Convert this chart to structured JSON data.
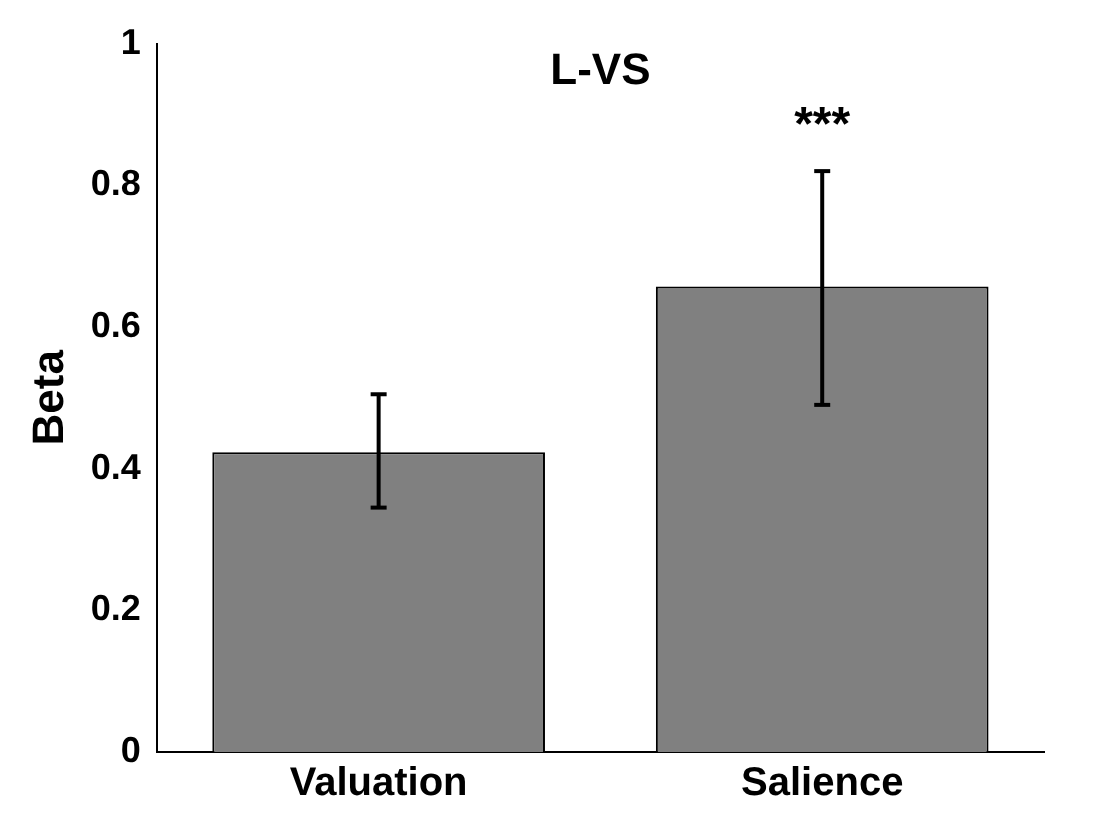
{
  "chart_data": {
    "type": "bar",
    "title": "L-VS",
    "ylabel": "Beta",
    "categories": [
      "Valuation",
      "Salience"
    ],
    "values": [
      0.423,
      0.657
    ],
    "color": "#808080",
    "errors": [
      [
        0.345,
        0.505
      ],
      [
        0.49,
        0.82
      ]
    ],
    "ylim": [
      0,
      1
    ],
    "yticks": [
      0,
      0.2,
      0.4,
      0.6,
      0.8,
      1
    ],
    "grid": false,
    "legend": false,
    "annotations": [
      "***"
    ]
  }
}
